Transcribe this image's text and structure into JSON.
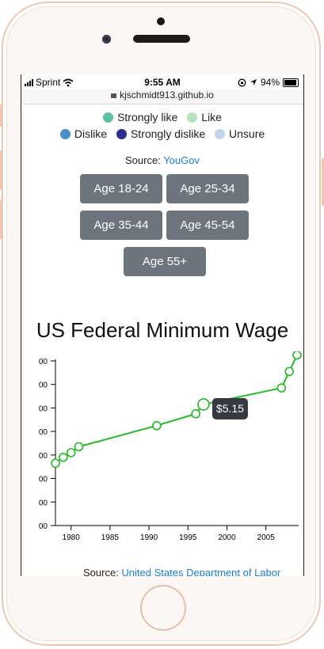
{
  "status_bar": {
    "carrier": "Sprint",
    "time": "9:55 AM",
    "battery": "94%"
  },
  "url": "kjschmidt913.github.io",
  "legend": [
    {
      "label": "Strongly like",
      "color": "#5bc0a4"
    },
    {
      "label": "Like",
      "color": "#b5e3be"
    },
    {
      "label": "Dislike",
      "color": "#4a8fc9"
    },
    {
      "label": "Strongly dislike",
      "color": "#2a2f8f"
    },
    {
      "label": "Unsure",
      "color": "#c2d4ec"
    }
  ],
  "source_yougov": {
    "prefix": "Source: ",
    "link": "YouGov"
  },
  "age_buttons": [
    "Age 18-24",
    "Age 25-34",
    "Age 35-44",
    "Age 45-54",
    "Age 55+"
  ],
  "chart_title": "US Federal Minimum Wage",
  "tooltip": "$5.15",
  "source_dol": {
    "prefix": "Source: ",
    "link": "United States Department of Labor"
  },
  "chart_data": {
    "type": "line",
    "title": "US Federal Minimum Wage",
    "x": [
      1978,
      1979,
      1980,
      1981,
      1991,
      1996,
      1997,
      2007,
      2008,
      2009
    ],
    "values": [
      2.65,
      2.9,
      3.1,
      3.35,
      4.25,
      4.75,
      5.15,
      5.85,
      6.55,
      7.25
    ],
    "highlighted_point": {
      "x": 1997,
      "value": 5.15
    },
    "x_ticks": [
      "1980",
      "1985",
      "1990",
      "1995",
      "2000",
      "2005"
    ],
    "y_tick_labels": [
      "00",
      "00",
      "00",
      "00",
      "00",
      "00",
      "00",
      "00"
    ],
    "xlim": [
      1978,
      2009
    ],
    "ylim": [
      0,
      7
    ],
    "line_color": "#22bb22"
  }
}
